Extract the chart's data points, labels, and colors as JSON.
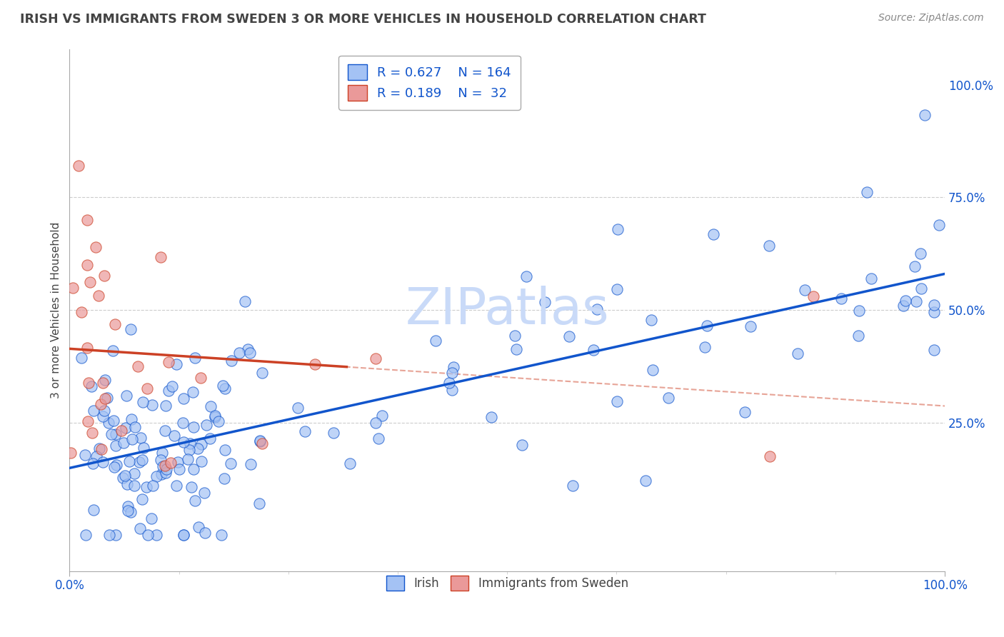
{
  "title": "IRISH VS IMMIGRANTS FROM SWEDEN 3 OR MORE VEHICLES IN HOUSEHOLD CORRELATION CHART",
  "source": "Source: ZipAtlas.com",
  "ylabel": "3 or more Vehicles in Household",
  "legend_irish": "Irish",
  "legend_sweden": "Immigrants from Sweden",
  "R_irish": 0.627,
  "N_irish": 164,
  "R_sweden": 0.189,
  "N_sweden": 32,
  "blue_color": "#a4c2f4",
  "pink_color": "#ea9999",
  "blue_line_color": "#1155cc",
  "pink_line_color": "#cc4125",
  "diag_line_color": "#dd7e6b",
  "title_color": "#434343",
  "axis_label_color": "#1155cc",
  "tick_label_color": "#1155cc",
  "watermark_color": "#c9daf8",
  "background_color": "#ffffff",
  "grid_color": "#cccccc",
  "blue_intercept": 0.14,
  "blue_slope": 0.47,
  "pink_intercept": 0.35,
  "pink_slope": 0.22,
  "xlim": [
    0,
    1
  ],
  "ylim": [
    -0.08,
    1.08
  ],
  "yticks": [
    0.0,
    0.25,
    0.5,
    0.75,
    1.0
  ],
  "ytick_labels": [
    "",
    "25.0%",
    "50.0%",
    "75.0%",
    "100.0%"
  ],
  "xtick_labels_show": [
    "0.0%",
    "100.0%"
  ],
  "xtick_positions_show": [
    0.0,
    1.0
  ]
}
